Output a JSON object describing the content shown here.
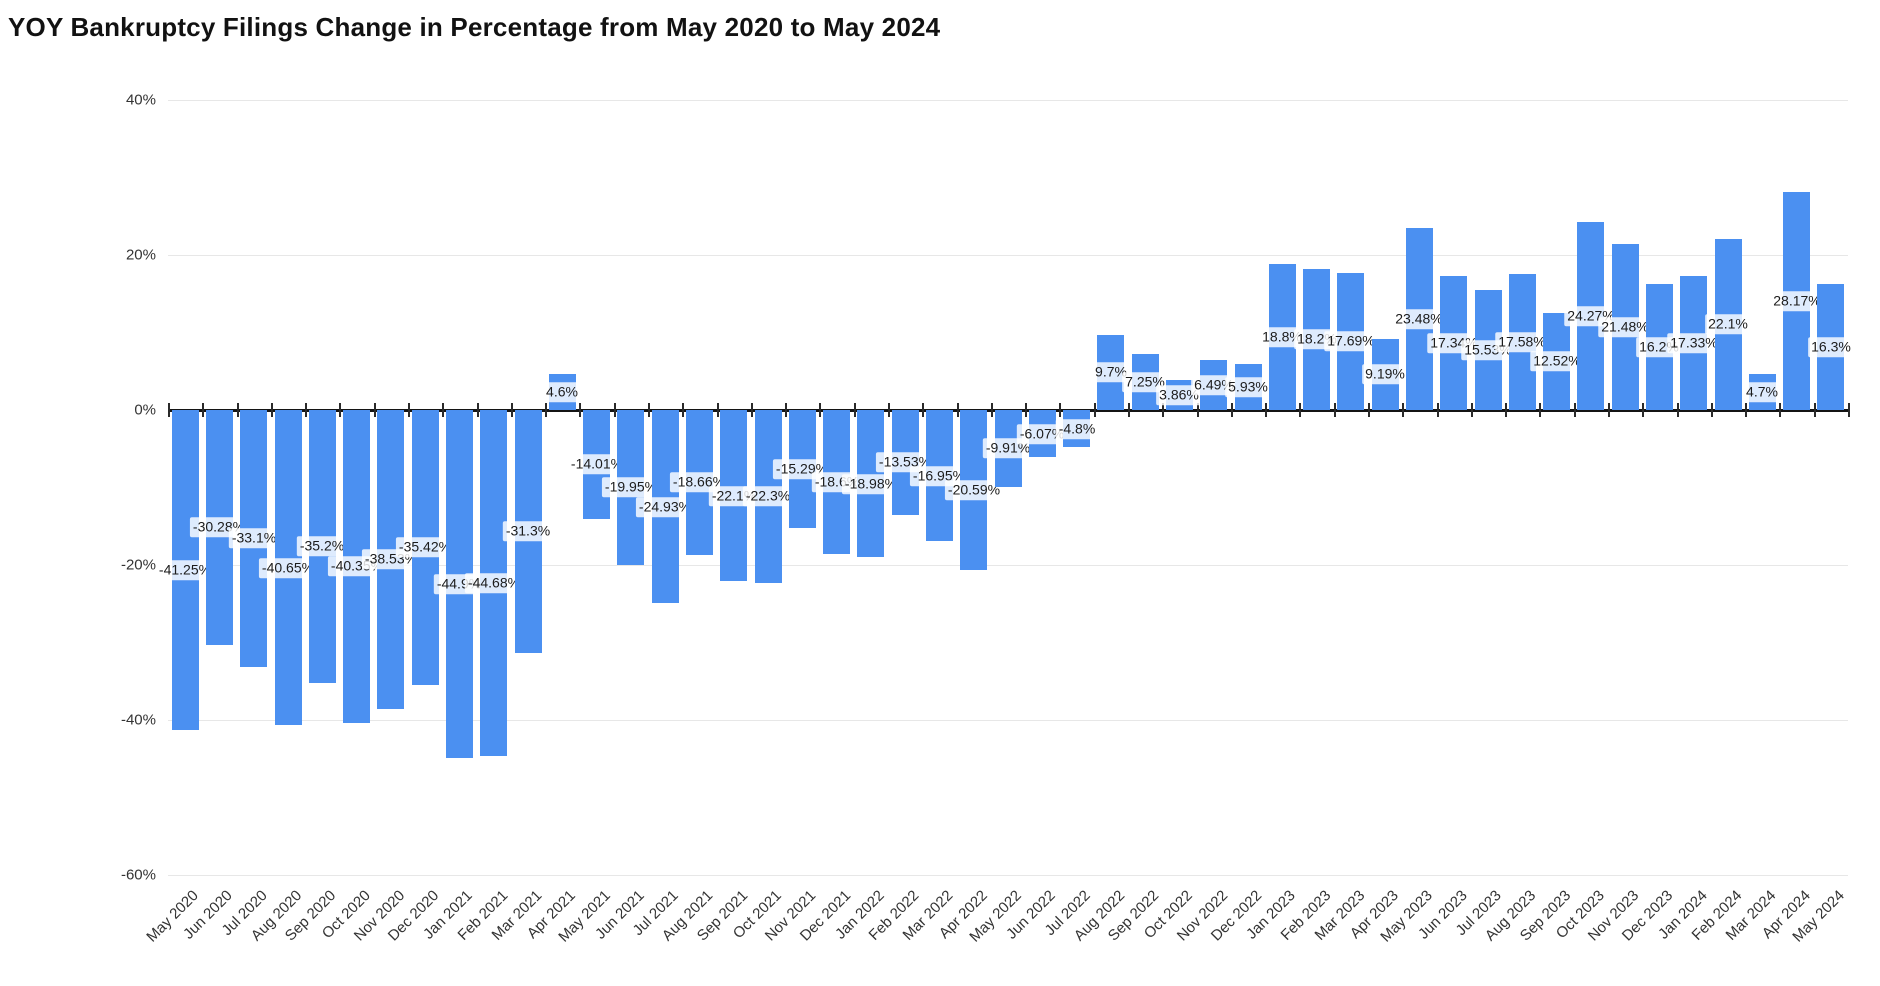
{
  "chart_data": {
    "type": "bar",
    "title": "YOY Bankruptcy Filings Change in Percentage from May 2020 to May 2024",
    "xlabel": "",
    "ylabel": "",
    "ylim": [
      -60,
      40
    ],
    "grid": true,
    "legend": false,
    "categories": [
      "May 2020",
      "Jun 2020",
      "Jul 2020",
      "Aug 2020",
      "Sep 2020",
      "Oct 2020",
      "Nov 2020",
      "Dec 2020",
      "Jan 2021",
      "Feb 2021",
      "Mar 2021",
      "Apr 2021",
      "May 2021",
      "Jun 2021",
      "Jul 2021",
      "Aug 2021",
      "Sep 2021",
      "Oct 2021",
      "Nov 2021",
      "Dec 2021",
      "Jan 2022",
      "Feb 2022",
      "Mar 2022",
      "Apr 2022",
      "May 2022",
      "Jun 2022",
      "Jul 2022",
      "Aug 2022",
      "Sep 2022",
      "Oct 2022",
      "Nov 2022",
      "Dec 2022",
      "Jan 2023",
      "Feb 2023",
      "Mar 2023",
      "Apr 2023",
      "May 2023",
      "Jun 2023",
      "Jul 2023",
      "Aug 2023",
      "Sep 2023",
      "Oct 2023",
      "Nov 2023",
      "Dec 2023",
      "Jan 2024",
      "Feb 2024",
      "Mar 2024",
      "Apr 2024",
      "May 2024"
    ],
    "values": [
      -41.25,
      -30.28,
      -33.1,
      -40.65,
      -35.2,
      -40.35,
      -38.53,
      -35.42,
      -44.9,
      -44.68,
      -31.3,
      4.6,
      -14.01,
      -19.95,
      -24.93,
      -18.66,
      -22.1,
      -22.3,
      -15.29,
      -18.6,
      -18.98,
      -13.53,
      -16.95,
      -20.59,
      -9.91,
      -6.07,
      -4.8,
      9.7,
      7.25,
      3.86,
      6.49,
      5.93,
      18.8,
      18.2,
      17.69,
      9.19,
      23.48,
      17.34,
      15.53,
      17.58,
      12.52,
      24.27,
      21.48,
      16.2,
      17.33,
      22.1,
      4.7,
      28.17,
      16.3
    ],
    "value_labels": [
      "-41.25%",
      "-30.28%",
      "-33.1%",
      "-40.65%",
      "-35.2%",
      "-40.35%",
      "-38.53%",
      "-35.42%",
      "-44.9%",
      "-44.68%",
      "-31.3%",
      "4.6%",
      "-14.01%",
      "-19.95%",
      "-24.93%",
      "-18.66%",
      "-22.1%",
      "-22.3%",
      "-15.29%",
      "-18.6%",
      "-18.98%",
      "-13.53%",
      "-16.95%",
      "-20.59%",
      "-9.91%",
      "-6.07%",
      "-4.8%",
      "9.7%",
      "7.25%",
      "3.86%",
      "6.49%",
      "5.93%",
      "18.8%",
      "18.2%",
      "17.69%",
      "9.19%",
      "23.48%",
      "17.34%",
      "15.53%",
      "17.58%",
      "12.52%",
      "24.27%",
      "21.48%",
      "16.2%",
      "17.33%",
      "22.1%",
      "4.7%",
      "28.17%",
      "16.3%"
    ],
    "ytick_values": [
      40,
      20,
      0,
      -20,
      -40,
      -60
    ],
    "ytick_labels": [
      "40%",
      "20%",
      "0%",
      "-20%",
      "-40%",
      "-60%"
    ],
    "colors": {
      "bar": "#4b90f1",
      "title": "#121212",
      "axis_text": "#333333",
      "gridline": "#e7e7e7",
      "zero_line": "#141414",
      "value_label_text": "#1c1c1c",
      "value_label_bg": "rgba(255,255,255,0.82)"
    }
  }
}
